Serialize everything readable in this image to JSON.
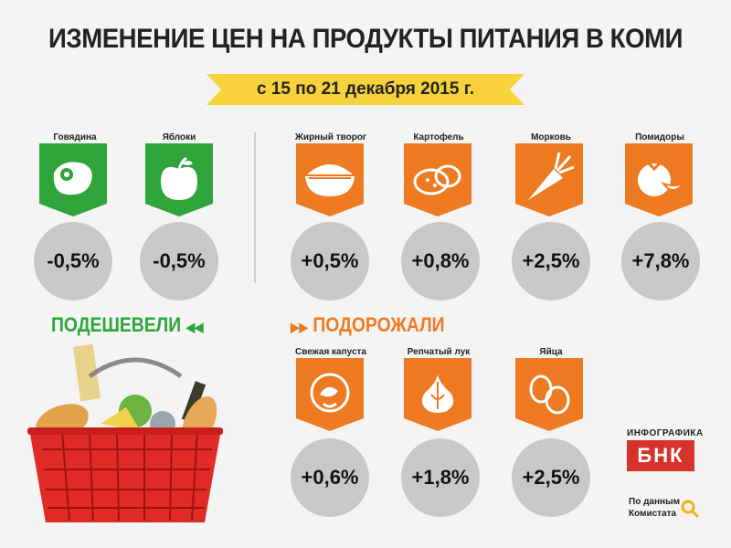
{
  "title": "ИЗМЕНЕНИЕ ЦЕН НА ПРОДУКТЫ ПИТАНИЯ В КОМИ",
  "period": "с 15 по 21 декабря 2015 г.",
  "cheaper": {
    "heading": "ПОДЕШЕВЕЛИ",
    "arrow": "◀◀",
    "items": [
      {
        "label": "Говядина",
        "change": "-0,5%",
        "icon": "beef-steak-icon"
      },
      {
        "label": "Яблоки",
        "change": "-0,5%",
        "icon": "apple-icon"
      }
    ]
  },
  "pricier": {
    "heading": "ПОДОРОЖАЛИ",
    "arrow": "▶▶",
    "items": [
      {
        "label": "Жирный творог",
        "change": "+0,5%",
        "icon": "cottage-cheese-bowl-icon"
      },
      {
        "label": "Картофель",
        "change": "+0,8%",
        "icon": "potato-icon"
      },
      {
        "label": "Морковь",
        "change": "+2,5%",
        "icon": "carrot-icon"
      },
      {
        "label": "Помидоры",
        "change": "+7,8%",
        "icon": "tomato-icon"
      },
      {
        "label": "Свежая капуста",
        "change": "+0,6%",
        "icon": "cabbage-icon"
      },
      {
        "label": "Репчатый лук",
        "change": "+1,8%",
        "icon": "onion-icon"
      },
      {
        "label": "Яйца",
        "change": "+2,5%",
        "icon": "eggs-icon"
      }
    ]
  },
  "brand": {
    "top": "ИНФОГРАФИКА",
    "name": "БНК"
  },
  "source": {
    "line1": "По данным",
    "line2": "Комистата",
    "icon": "magnifier-icon"
  },
  "colors": {
    "green": "#2ea43a",
    "orange": "#ee7a22",
    "yellow": "#f7d23a",
    "circle": "#c8c8c8",
    "red": "#d8322c"
  }
}
